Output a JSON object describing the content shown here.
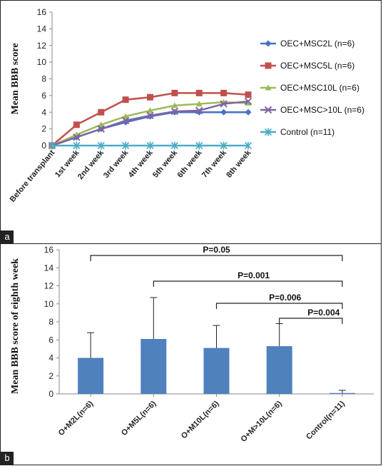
{
  "chart_data": [
    {
      "panel": "a",
      "type": "line",
      "ylabel": "Mean BBB score",
      "ylim": [
        0,
        16
      ],
      "yticks": [
        "0",
        "2",
        "4",
        "6",
        "8",
        "10",
        "12",
        "14",
        "16"
      ],
      "categories": [
        "Before transplant",
        "1st week",
        "2nd week",
        "3rd week",
        "4th week",
        "5th week",
        "6th week",
        "7th week",
        "8th week"
      ],
      "legend_position": "right",
      "series": [
        {
          "name": "OEC+MSC2L (n=6)",
          "color": "#4472C4",
          "marker": "diamond",
          "values": [
            0,
            1.0,
            2.0,
            2.8,
            3.5,
            4.0,
            4.0,
            4.0,
            4.0
          ]
        },
        {
          "name": "OEC+MSC5L (n=6)",
          "color": "#C0504D",
          "marker": "square",
          "values": [
            0,
            2.5,
            4.0,
            5.5,
            5.8,
            6.3,
            6.3,
            6.3,
            6.1
          ]
        },
        {
          "name": "OEC+MSC10L (n=6)",
          "color": "#9BBB59",
          "marker": "triangle",
          "values": [
            0,
            1.3,
            2.5,
            3.5,
            4.2,
            4.8,
            5.0,
            5.2,
            5.1
          ]
        },
        {
          "name": "OEC+MSC>10L (n=6)",
          "color": "#8064A2",
          "marker": "x",
          "values": [
            0,
            1.0,
            2.0,
            3.0,
            3.6,
            4.1,
            4.2,
            5.0,
            5.3
          ]
        },
        {
          "name": "Control (n=11)",
          "color": "#4BACC6",
          "marker": "star",
          "values": [
            0,
            0,
            0,
            0,
            0,
            0,
            0,
            0,
            0
          ]
        }
      ]
    },
    {
      "panel": "b",
      "type": "bar",
      "ylabel": "Mean BBB score of eighth week",
      "ylim": [
        0,
        16
      ],
      "yticks": [
        "0",
        "2",
        "4",
        "6",
        "8",
        "10",
        "12",
        "14",
        "16"
      ],
      "categories": [
        "O+M2L(n=6)",
        "O+M5L(n=6)",
        "O+M10L(n=6)",
        "O+M>10L(n=6)",
        "Control(n=11)"
      ],
      "values": [
        4.0,
        6.1,
        5.1,
        5.3,
        0.1
      ],
      "errors": [
        2.8,
        4.6,
        2.5,
        2.5,
        0.3
      ],
      "bar_color": "#4F81BD",
      "comparisons": [
        {
          "from": 0,
          "to": 4,
          "label": "P=0.05"
        },
        {
          "from": 1,
          "to": 4,
          "label": "P=0.001"
        },
        {
          "from": 2,
          "to": 4,
          "label": "P=0.006"
        },
        {
          "from": 3,
          "to": 4,
          "label": "P=0.004"
        }
      ]
    }
  ],
  "panel_labels": [
    "a",
    "b"
  ]
}
